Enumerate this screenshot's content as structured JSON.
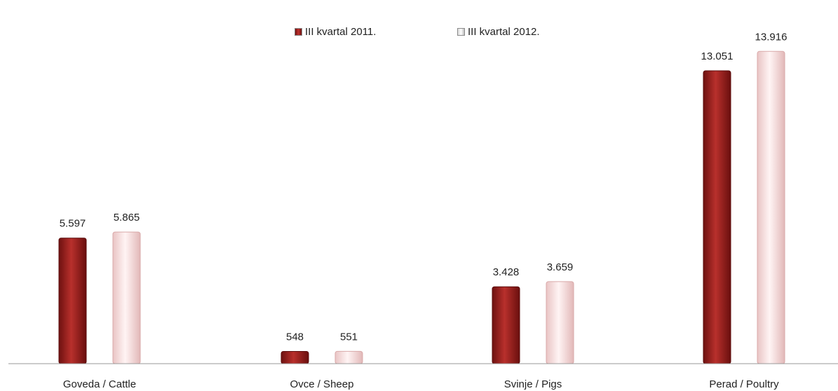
{
  "chart_data": {
    "type": "bar",
    "categories": [
      "Goveda / Cattle",
      "Ovce / Sheep",
      "Svinje / Pigs",
      "Perad / Poultry"
    ],
    "series": [
      {
        "name": "III kvartal 2011.",
        "values": [
          5597,
          548,
          3428,
          13051
        ],
        "labels": [
          "5.597",
          "548",
          "3.428",
          "13.051"
        ],
        "color": "#a3211e"
      },
      {
        "name": "III kvartal 2012.",
        "values": [
          5865,
          551,
          3659,
          13916
        ],
        "labels": [
          "5.865",
          "551",
          "3.659",
          "13.916"
        ],
        "color": "#fbe6e6"
      }
    ],
    "title": "",
    "xlabel": "",
    "ylabel": "",
    "ylim": [
      0,
      14800
    ],
    "grid": false,
    "legend_position": "top-center"
  }
}
